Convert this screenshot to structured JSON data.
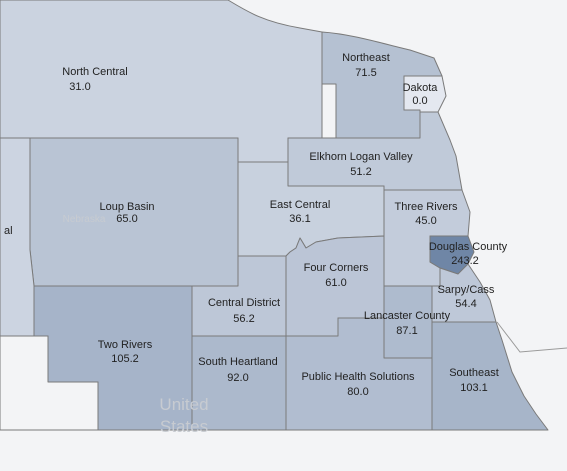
{
  "basemap": {
    "state_label": "Nebraska",
    "country_label": "United States",
    "country_label_line1": "United",
    "country_label_line2": "States"
  },
  "colors": {
    "background": "#e9eaec",
    "outside": "#f3f4f6",
    "border": "#7a7a7a",
    "scale_low": "#e4e8f0",
    "scale_high": "#6f86a6"
  },
  "regions": [
    {
      "id": "north-central",
      "name": "North Central",
      "value": "31.0"
    },
    {
      "id": "northeast",
      "name": "Northeast",
      "value": "71.5"
    },
    {
      "id": "dakota",
      "name": "Dakota",
      "value": "0.0"
    },
    {
      "id": "elkhorn-logan-valley",
      "name": "Elkhorn Logan Valley",
      "value": "51.2"
    },
    {
      "id": "loup-basin",
      "name": "Loup Basin",
      "value": "65.0"
    },
    {
      "id": "east-central",
      "name": "East Central",
      "value": "36.1"
    },
    {
      "id": "three-rivers",
      "name": "Three Rivers",
      "value": "45.0"
    },
    {
      "id": "douglas-county",
      "name": "Douglas County",
      "value": "243.2"
    },
    {
      "id": "sarpy-cass",
      "name": "Sarpy/Cass",
      "value": "54.4"
    },
    {
      "id": "four-corners",
      "name": "Four Corners",
      "value": "61.0"
    },
    {
      "id": "central-district",
      "name": "Central District",
      "value": "56.2"
    },
    {
      "id": "lancaster-county",
      "name": "Lancaster County",
      "value": "87.1"
    },
    {
      "id": "two-rivers",
      "name": "Two Rivers",
      "value": "105.2"
    },
    {
      "id": "south-heartland",
      "name": "South Heartland",
      "value": "92.0"
    },
    {
      "id": "public-health-solutions",
      "name": "Public Health Solutions",
      "value": "80.0"
    },
    {
      "id": "southeast",
      "name": "Southeast",
      "value": "103.1"
    },
    {
      "id": "west-central",
      "name": "",
      "value": "",
      "partial_label": "al"
    }
  ]
}
